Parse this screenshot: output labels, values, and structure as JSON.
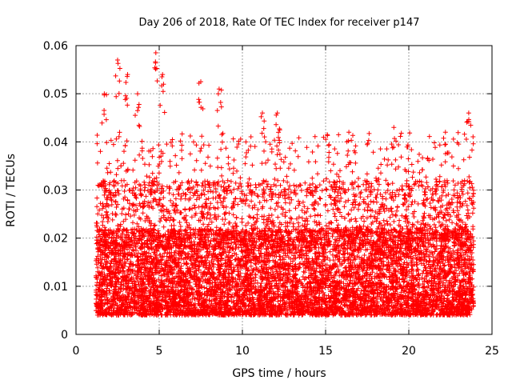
{
  "chart_data": {
    "type": "scatter",
    "title": "Day 206 of 2018, Rate Of TEC Index for receiver p147",
    "xlabel": "GPS time / hours",
    "ylabel": "ROTI / TECUs",
    "xlim": [
      0,
      25
    ],
    "ylim": [
      0,
      0.06
    ],
    "x_ticks": [
      0,
      5,
      10,
      15,
      20,
      25
    ],
    "x_tick_labels": [
      "0",
      "5",
      "10",
      "15",
      "20",
      "25"
    ],
    "y_ticks": [
      0,
      0.01,
      0.02,
      0.03,
      0.04,
      0.05,
      0.06
    ],
    "y_tick_labels": [
      "0",
      "0.01",
      "0.02",
      "0.03",
      "0.04",
      "0.05",
      "0.06"
    ],
    "grid": true,
    "marker": "+",
    "marker_color": "#ff0000",
    "data_range_x": [
      1.2,
      23.9
    ],
    "dense_band_y": [
      0.004,
      0.022
    ],
    "notable_points": [
      {
        "x": 2.5,
        "y": 0.057
      },
      {
        "x": 4.8,
        "y": 0.0585
      },
      {
        "x": 3.1,
        "y": 0.054
      },
      {
        "x": 5.2,
        "y": 0.054
      },
      {
        "x": 1.7,
        "y": 0.05
      },
      {
        "x": 3.7,
        "y": 0.05
      },
      {
        "x": 7.5,
        "y": 0.0525
      },
      {
        "x": 8.6,
        "y": 0.051
      },
      {
        "x": 11.2,
        "y": 0.046
      },
      {
        "x": 12.1,
        "y": 0.046
      },
      {
        "x": 15.1,
        "y": 0.0415
      },
      {
        "x": 16.4,
        "y": 0.042
      },
      {
        "x": 19.1,
        "y": 0.043
      },
      {
        "x": 22.2,
        "y": 0.042
      },
      {
        "x": 23.6,
        "y": 0.046
      }
    ]
  }
}
